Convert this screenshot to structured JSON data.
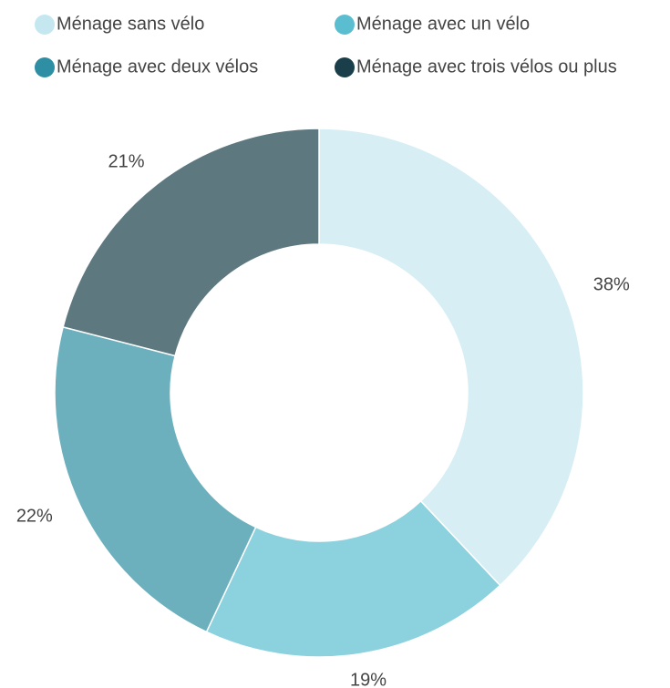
{
  "chart_data": {
    "type": "donut",
    "series": [
      {
        "name": "Ménage sans vélo",
        "color": "#c4e7f0"
      },
      {
        "name": "Ménage avec un vélo",
        "color": "#5bbdd0"
      },
      {
        "name": "Ménage avec deux vélos",
        "color": "#2e8ea3"
      },
      {
        "name": "Ménage avec trois vélos ou plus",
        "color": "#1a3f4a"
      }
    ],
    "values": [
      38,
      19,
      22,
      21
    ],
    "value_labels": [
      "38%",
      "19%",
      "22%",
      "21%"
    ]
  }
}
